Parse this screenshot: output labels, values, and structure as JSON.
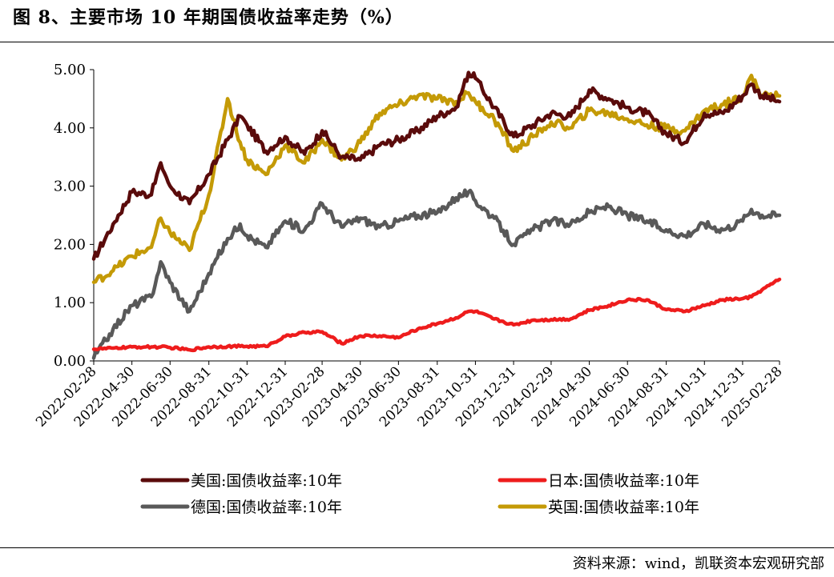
{
  "title": "图 8、主要市场 10 年期国债收益率走势（%）",
  "source": "资料来源：wind，凯联资本宏观研究部",
  "chart_data": {
    "type": "line",
    "xlabel": "",
    "ylabel": "",
    "ylim": [
      0,
      5
    ],
    "yticks": [
      "0.00",
      "1.00",
      "2.00",
      "3.00",
      "4.00",
      "5.00"
    ],
    "grid": false,
    "legend_position": "bottom",
    "x_ticks": [
      "2022-02-28",
      "2022-04-30",
      "2022-06-30",
      "2022-08-31",
      "2022-10-31",
      "2022-12-31",
      "2023-02-28",
      "2023-04-30",
      "2023-06-30",
      "2023-08-31",
      "2023-10-31",
      "2023-12-31",
      "2024-02-29",
      "2024-04-30",
      "2024-06-30",
      "2024-08-31",
      "2024-10-31",
      "2024-12-31",
      "2025-02-28"
    ],
    "dates": [
      "2022-02-28",
      "2022-03-31",
      "2022-04-30",
      "2022-05-31",
      "2022-06-15",
      "2022-06-30",
      "2022-07-31",
      "2022-08-31",
      "2022-09-30",
      "2022-10-20",
      "2022-10-31",
      "2022-11-30",
      "2022-12-31",
      "2023-01-31",
      "2023-02-28",
      "2023-03-31",
      "2023-04-30",
      "2023-05-31",
      "2023-06-30",
      "2023-07-31",
      "2023-08-31",
      "2023-09-30",
      "2023-10-20",
      "2023-10-31",
      "2023-11-30",
      "2023-12-31",
      "2024-01-31",
      "2024-02-29",
      "2024-03-31",
      "2024-04-30",
      "2024-05-31",
      "2024-06-30",
      "2024-07-31",
      "2024-08-31",
      "2024-09-30",
      "2024-10-31",
      "2024-11-30",
      "2024-12-31",
      "2025-01-14",
      "2025-01-31",
      "2025-02-28"
    ],
    "series": [
      {
        "name": "美国:国债收益率:10年",
        "color": "#5a0b0b",
        "values": [
          1.75,
          2.35,
          2.9,
          2.85,
          3.4,
          3.0,
          2.7,
          3.2,
          3.8,
          4.2,
          4.05,
          3.6,
          3.85,
          3.55,
          3.95,
          3.5,
          3.45,
          3.7,
          3.8,
          3.95,
          4.2,
          4.35,
          4.95,
          4.85,
          4.35,
          3.85,
          4.05,
          4.25,
          4.2,
          4.65,
          4.5,
          4.35,
          4.25,
          3.9,
          3.75,
          4.25,
          4.25,
          4.55,
          4.75,
          4.55,
          4.45
        ]
      },
      {
        "name": "日本:国债收益率:10年",
        "color": "#ee1c1c",
        "values": [
          0.2,
          0.22,
          0.24,
          0.24,
          0.24,
          0.23,
          0.19,
          0.24,
          0.25,
          0.25,
          0.25,
          0.25,
          0.42,
          0.49,
          0.5,
          0.3,
          0.43,
          0.43,
          0.4,
          0.55,
          0.64,
          0.74,
          0.85,
          0.85,
          0.72,
          0.62,
          0.7,
          0.71,
          0.72,
          0.87,
          0.95,
          1.05,
          1.05,
          0.88,
          0.85,
          0.95,
          1.05,
          1.07,
          1.1,
          1.22,
          1.4
        ]
      },
      {
        "name": "德国:国债收益率:10年",
        "color": "#595959",
        "values": [
          0.05,
          0.55,
          0.95,
          1.1,
          1.7,
          1.35,
          0.85,
          1.5,
          2.1,
          2.35,
          2.15,
          1.95,
          2.4,
          2.25,
          2.7,
          2.3,
          2.45,
          2.3,
          2.4,
          2.5,
          2.55,
          2.8,
          2.9,
          2.75,
          2.45,
          2.0,
          2.25,
          2.4,
          2.35,
          2.55,
          2.65,
          2.5,
          2.4,
          2.25,
          2.15,
          2.35,
          2.25,
          2.4,
          2.6,
          2.5,
          2.5
        ]
      },
      {
        "name": "英国:国债收益率:10年",
        "color": "#c49a06",
        "values": [
          1.35,
          1.55,
          1.8,
          1.95,
          2.45,
          2.2,
          1.9,
          2.85,
          4.5,
          3.75,
          3.45,
          3.2,
          3.7,
          3.4,
          3.8,
          3.45,
          3.75,
          4.25,
          4.4,
          4.55,
          4.5,
          4.45,
          4.6,
          4.45,
          4.15,
          3.6,
          3.85,
          4.1,
          4.0,
          4.3,
          4.25,
          4.15,
          4.05,
          4.0,
          3.95,
          4.3,
          4.4,
          4.55,
          4.9,
          4.55,
          4.55
        ]
      }
    ]
  }
}
